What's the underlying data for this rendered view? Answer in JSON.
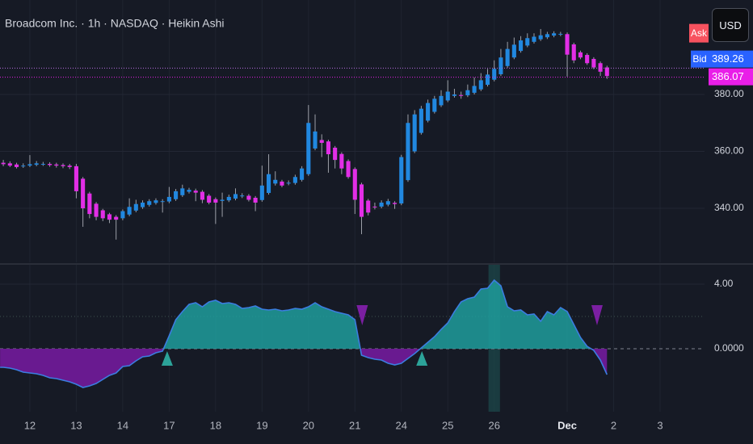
{
  "header": {
    "title": "Broadcom Inc. · 1h · NASDAQ · Heikin Ashi"
  },
  "toolbar": {
    "currency": "USD"
  },
  "chart_data": [
    {
      "type": "candlestick",
      "open": [
        356,
        355.8,
        355.4,
        355,
        355,
        355.3,
        355.5,
        355.6,
        355.4,
        355.2,
        355,
        354.8,
        350.4,
        345.2,
        341.6,
        339.3,
        337.9,
        337,
        336.5,
        337.8,
        339.2,
        340.4,
        341.2,
        341.9,
        342.3,
        342.4,
        343.2,
        344.6,
        345.8,
        346.2,
        345.8,
        344.4,
        343.2,
        342.6,
        342.8,
        343.4,
        344.2,
        344.4,
        343.7,
        342.9,
        345.4,
        348.7,
        349.4,
        348.7,
        348.9,
        350,
        352,
        361,
        364,
        363.5,
        361.3,
        359.1,
        356.6,
        353.8,
        348.4,
        342.7,
        340.6,
        340.6,
        341.3,
        341.9,
        341.7,
        349.9,
        360,
        366.5,
        370.8,
        373.9,
        376.2,
        377.9,
        379.5,
        379.8,
        379.7,
        380.6,
        381.8,
        383.4,
        385.2,
        387.1,
        390,
        393,
        395.3,
        397.2,
        398.5,
        399.4,
        400.1,
        400.7,
        401.1,
        401.2,
        397.6,
        394.8,
        393.9,
        392.5,
        391,
        389.5
      ],
      "high": [
        357,
        356.5,
        356,
        355.8,
        358.7,
        356.6,
        356.3,
        356.2,
        356,
        355.8,
        355.6,
        355.6,
        351,
        345.8,
        342.2,
        339.8,
        338.4,
        337.6,
        339.6,
        343.5,
        343,
        342.8,
        343.2,
        343.5,
        343.2,
        347.5,
        346.8,
        348.3,
        347.2,
        346.9,
        346.4,
        345,
        343.8,
        345.5,
        344.8,
        347,
        345.3,
        345,
        344.3,
        355,
        359,
        353,
        350,
        349.8,
        351.8,
        354.8,
        376.3,
        373,
        366,
        364.1,
        361.9,
        359.7,
        357.2,
        354.4,
        349,
        343.3,
        342,
        342.8,
        343.3,
        342.5,
        358.8,
        373,
        374.5,
        376,
        378.2,
        379.5,
        381.5,
        385,
        382,
        381,
        383.5,
        386,
        387.5,
        389,
        392,
        396,
        398.5,
        400,
        400.5,
        401.5,
        401.5,
        403,
        402,
        402.2,
        402,
        401.8,
        398.2,
        395.4,
        394.5,
        393.1,
        391.6,
        390.1
      ],
      "low": [
        354.8,
        354.5,
        354,
        354.2,
        354.5,
        354.8,
        354.9,
        354.6,
        354.3,
        354.1,
        353.8,
        343.5,
        333.5,
        336.5,
        335.8,
        335.5,
        334.8,
        329,
        335.8,
        337.2,
        338.6,
        339.8,
        340.6,
        341.3,
        338.5,
        341.8,
        342.6,
        344,
        345.2,
        342.5,
        341.8,
        341.4,
        334.5,
        337,
        342.2,
        342.8,
        343.6,
        342.4,
        339,
        342.3,
        344.8,
        348,
        347.4,
        348.1,
        348.3,
        349.4,
        351.4,
        360.4,
        358,
        352.5,
        354,
        352,
        350.4,
        338,
        330.9,
        337.5,
        339.6,
        340,
        340.7,
        339.8,
        341.1,
        349.3,
        359.4,
        365.9,
        370.2,
        373.3,
        375.6,
        377.3,
        378.9,
        378.5,
        379.1,
        380,
        381.2,
        382.8,
        384.6,
        386.5,
        389.4,
        392.4,
        394.7,
        396.6,
        397.9,
        398.8,
        399.5,
        400.1,
        400.5,
        386.3,
        391,
        392.4,
        390.4,
        388.9,
        386.5,
        385.5
      ],
      "close": [
        355.5,
        355,
        354.5,
        355,
        355.5,
        355.8,
        355.6,
        355.2,
        355,
        354.8,
        354.5,
        346,
        340,
        338,
        337,
        336.5,
        336,
        336,
        339,
        340.5,
        341.5,
        342,
        342.5,
        342.8,
        342.5,
        344,
        346,
        347,
        346.5,
        345.5,
        343,
        342,
        342,
        343,
        344,
        345,
        344.5,
        343,
        342,
        348,
        352,
        350,
        348,
        349,
        351,
        354,
        370,
        367,
        363,
        359,
        357,
        354,
        351,
        343,
        337,
        338.5,
        340.5,
        342,
        342.5,
        341.5,
        358,
        370,
        373,
        375,
        377,
        378.5,
        379.5,
        381,
        380,
        379.5,
        381.5,
        383,
        385,
        387,
        389,
        393,
        396,
        397.5,
        399,
        399.8,
        400.3,
        400.8,
        401.2,
        401.5,
        401.3,
        394,
        392,
        393,
        391,
        389.5,
        388,
        386.5
      ],
      "up_color": "#2188e0",
      "down_color": "#e22ee6",
      "wick_color": "#c9ccd4",
      "xlim": [
        -0.5,
        105.7
      ],
      "xticks": [
        {
          "value": 4,
          "label": "12"
        },
        {
          "value": 11,
          "label": "13"
        },
        {
          "value": 18,
          "label": "14"
        },
        {
          "value": 25,
          "label": "17"
        },
        {
          "value": 32,
          "label": "18"
        },
        {
          "value": 39,
          "label": "19"
        },
        {
          "value": 46,
          "label": "20"
        },
        {
          "value": 53,
          "label": "21"
        },
        {
          "value": 60,
          "label": "24"
        },
        {
          "value": 67,
          "label": "25"
        },
        {
          "value": 74,
          "label": "26"
        },
        {
          "value": 85,
          "label": "Dec"
        },
        {
          "value": 92,
          "label": "2"
        },
        {
          "value": 99,
          "label": "3"
        }
      ],
      "bold_ticks": [
        11
      ],
      "ylim": [
        321,
        413.2
      ],
      "yticks": [
        {
          "value": 340,
          "label": "340.00"
        },
        {
          "value": 360,
          "label": "360.00"
        },
        {
          "value": 380,
          "label": "380.00"
        }
      ],
      "grid": true,
      "price_lines": [
        {
          "value": 389.26,
          "tag": "Bid",
          "color": "#b66ee0",
          "box_color": "#2962ff"
        },
        {
          "value": 386.07,
          "color": "#e91ee8",
          "box_color": "#e91ee8"
        }
      ],
      "ask_tag": {
        "label": "Ask",
        "color": "#f7525f"
      }
    },
    {
      "type": "area",
      "values": [
        -1.15,
        -1.2,
        -1.3,
        -1.45,
        -1.5,
        -1.55,
        -1.65,
        -1.8,
        -1.85,
        -1.95,
        -2.05,
        -2.2,
        -2.4,
        -2.3,
        -2.15,
        -1.9,
        -1.65,
        -1.5,
        -1.1,
        -1.05,
        -0.75,
        -0.5,
        -0.45,
        -0.25,
        -0.15,
        0.8,
        1.8,
        2.3,
        2.75,
        2.85,
        2.6,
        2.9,
        3,
        2.8,
        2.85,
        2.75,
        2.5,
        2.55,
        2.65,
        2.45,
        2.4,
        2.45,
        2.35,
        2.4,
        2.5,
        2.45,
        2.6,
        2.85,
        2.6,
        2.45,
        2.3,
        2.2,
        2.1,
        1.8,
        -0.4,
        -0.55,
        -0.65,
        -0.7,
        -0.9,
        -1,
        -0.9,
        -0.6,
        -0.3,
        0.05,
        0.4,
        0.75,
        1.2,
        1.6,
        2.3,
        2.9,
        3.1,
        3.2,
        3.7,
        3.75,
        4.25,
        3.9,
        2.6,
        2.35,
        2.4,
        2.1,
        2.15,
        1.7,
        2.3,
        2.1,
        2.55,
        2.3,
        1.5,
        0.7,
        0.15,
        -0.1,
        -0.7,
        -1.6
      ],
      "line_color": "#3b7de0",
      "pos_fill": "#1f9d9c",
      "neg_fill": "#6e1a96",
      "xlim": [
        -0.5,
        105.7
      ],
      "ylim": [
        -3.9,
        5.2
      ],
      "yticks": [
        {
          "value": 4,
          "label": "4.00"
        },
        {
          "value": 0,
          "label": "0.0000"
        }
      ],
      "levels": [
        2
      ],
      "buy_signals": [
        24.7,
        63.1
      ],
      "buy_color": "#2fb3a6",
      "sell_signals": [
        54.1,
        89.5
      ],
      "sell_color": "#7b1fa2",
      "highlight_x": [
        74
      ],
      "highlight_color": "#1d4a4c"
    }
  ]
}
